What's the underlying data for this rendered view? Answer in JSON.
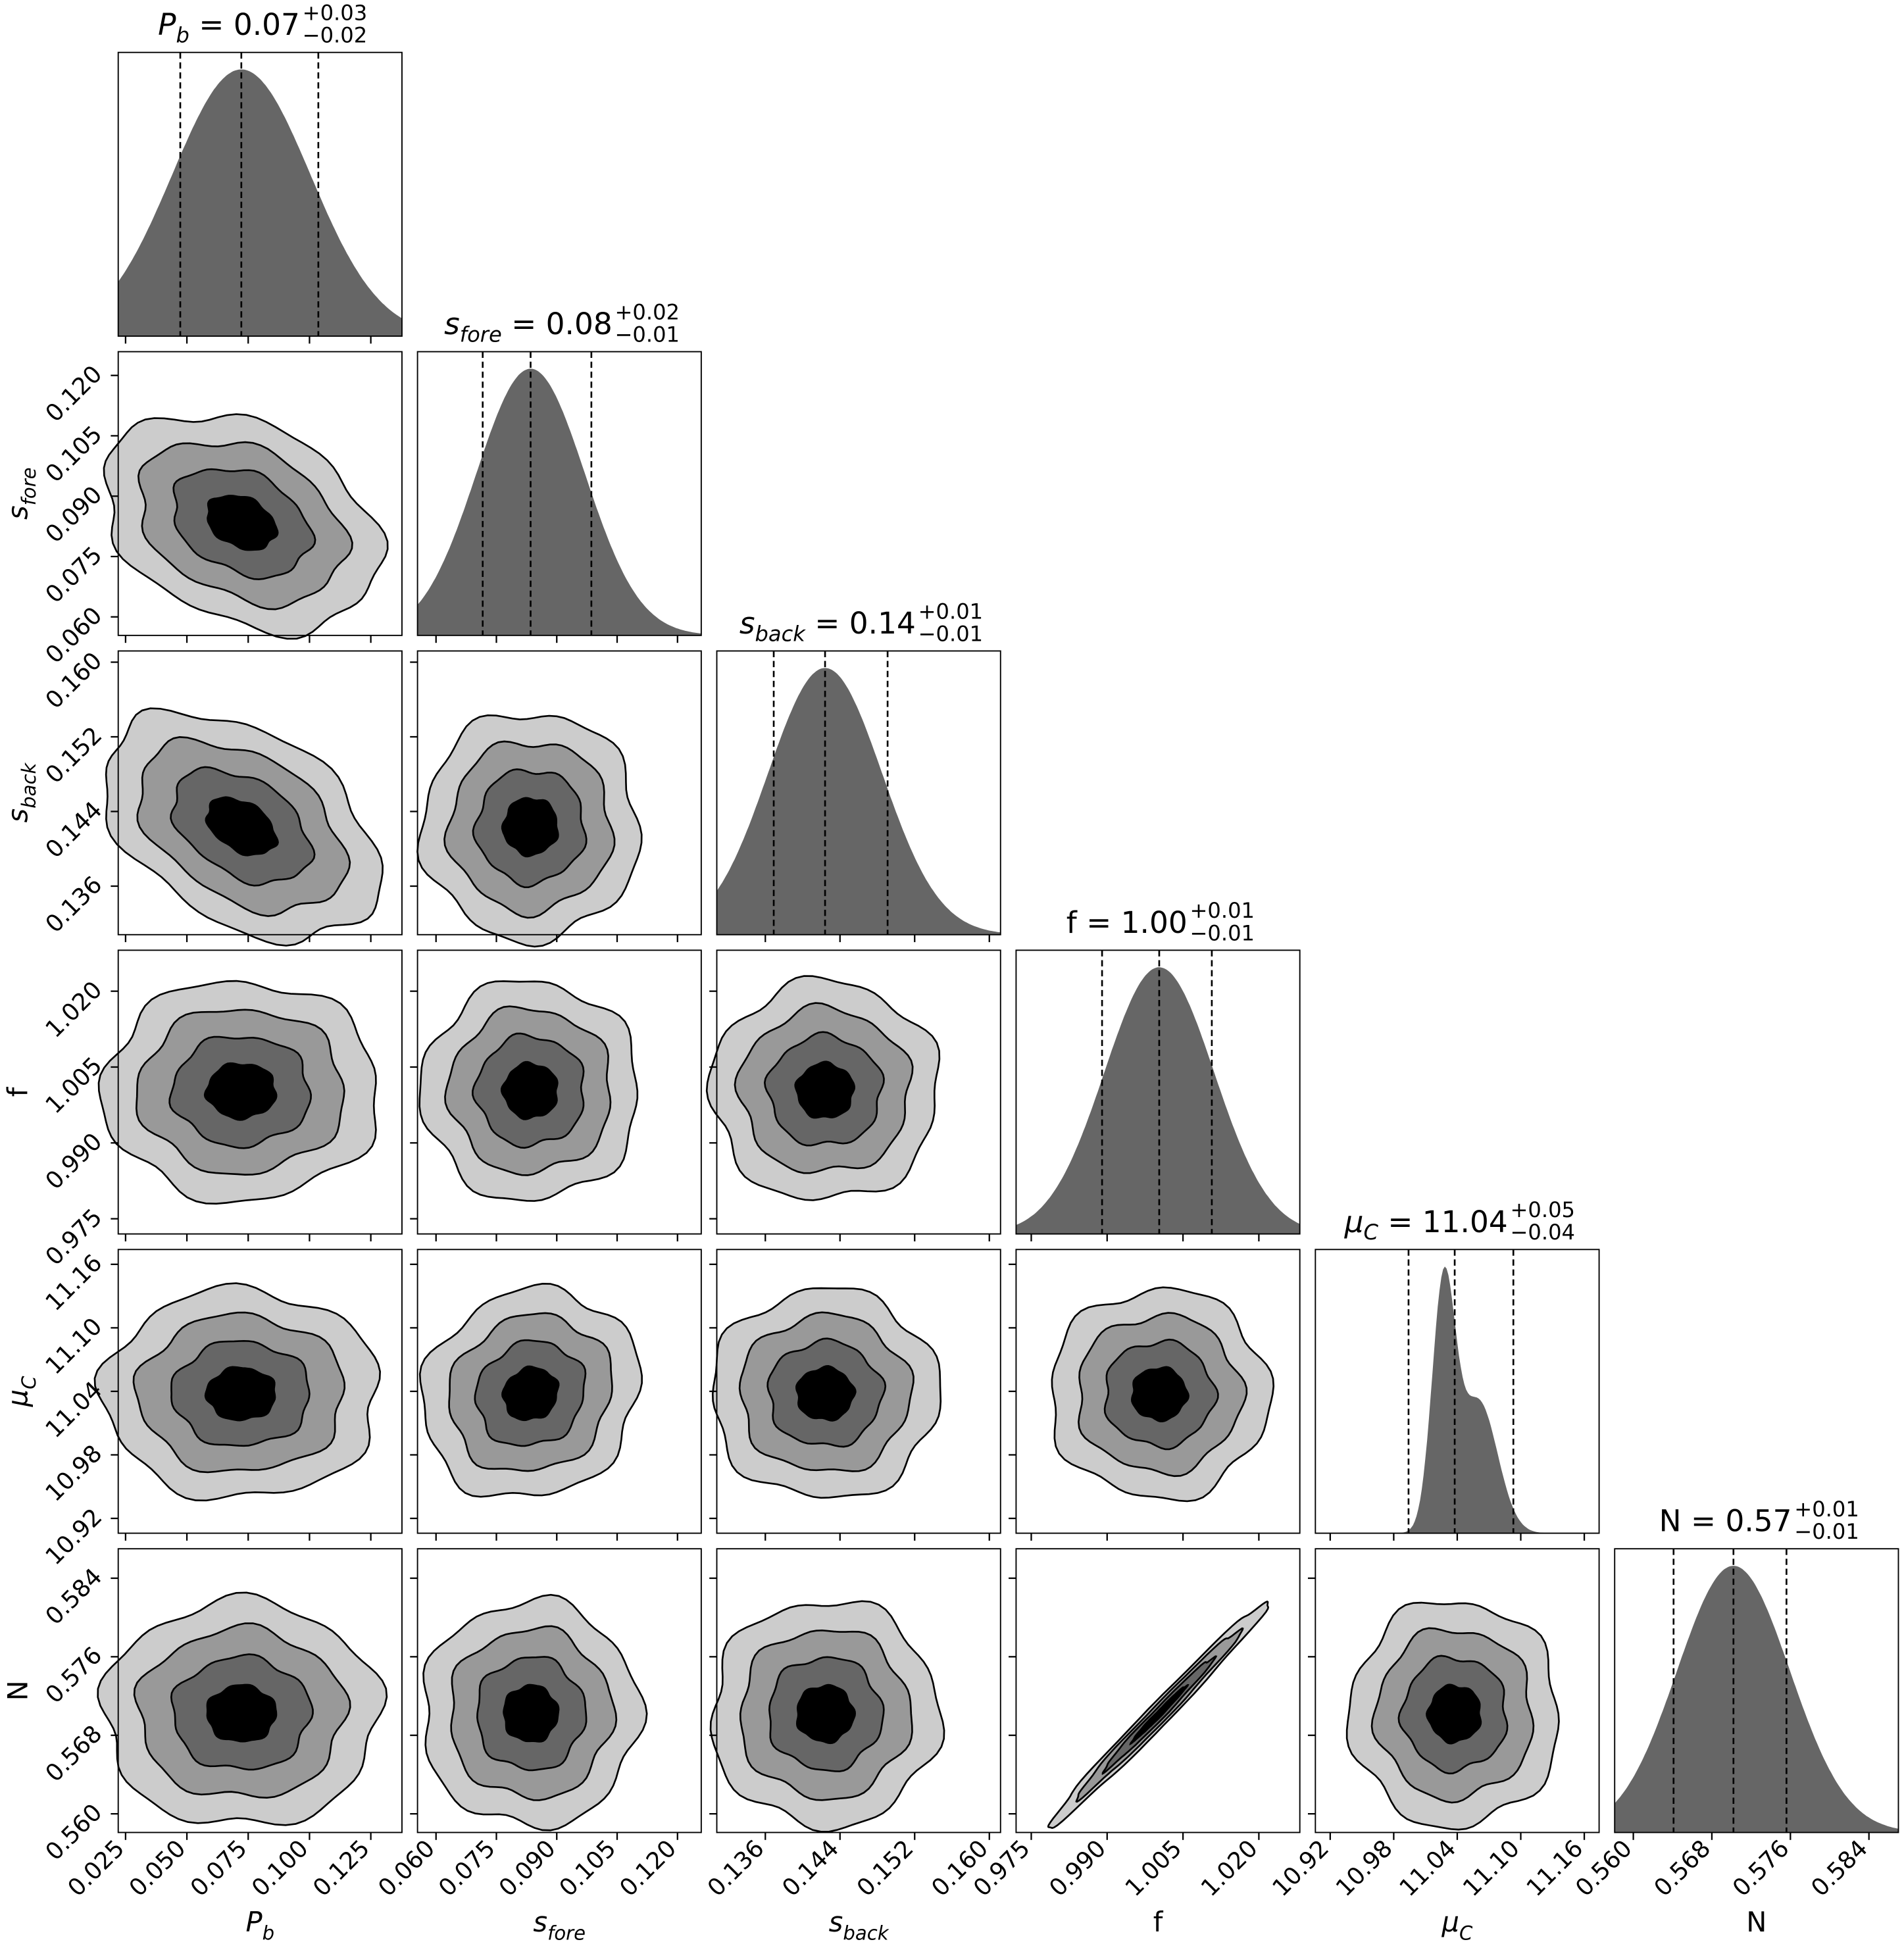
{
  "chart_data": {
    "type": "corner",
    "title": "",
    "contour_colors": [
      "#cccccc",
      "#999999",
      "#666666",
      "#000000"
    ],
    "histogram_color": "#666666",
    "contour_sigma_levels": [
      0.5,
      1.0,
      1.5,
      2.0
    ],
    "parameters": [
      {
        "key": "P_b",
        "label": "P",
        "sub": "b",
        "italic": true,
        "title": {
          "value": "0.07",
          "plus": "+0.03",
          "minus": "−0.02"
        },
        "range": [
          0.022,
          0.1377
        ],
        "ticks": [
          "0.025",
          "0.050",
          "0.075",
          "0.100",
          "0.125"
        ],
        "median": 0.0722,
        "lo": 0.0473,
        "hi": 0.1036
      },
      {
        "key": "s_fore",
        "label": "s",
        "sub": "fore",
        "italic": true,
        "title": {
          "value": "0.08",
          "plus": "+0.02",
          "minus": "−0.01"
        },
        "range": [
          0.0554,
          0.1259
        ],
        "ticks": [
          "0.060",
          "0.075",
          "0.090",
          "0.105",
          "0.120"
        ],
        "median": 0.0835,
        "lo": 0.0716,
        "hi": 0.0986
      },
      {
        "key": "s_back",
        "label": "s",
        "sub": "back",
        "italic": true,
        "title": {
          "value": "0.14",
          "plus": "+0.01",
          "minus": "−0.01"
        },
        "range": [
          0.1308,
          0.1612
        ],
        "ticks": [
          "0.136",
          "0.144",
          "0.152",
          "0.160"
        ],
        "median": 0.1424,
        "lo": 0.1369,
        "hi": 0.1491
      },
      {
        "key": "f",
        "label": "f",
        "sub": "",
        "italic": false,
        "title": {
          "value": "1.00",
          "plus": "+0.01",
          "minus": "−0.01"
        },
        "range": [
          0.972,
          1.0281
        ],
        "ticks": [
          "0.975",
          "0.990",
          "1.005",
          "1.020"
        ],
        "median": 1.0003,
        "lo": 0.989,
        "hi": 1.0107
      },
      {
        "key": "mu_C",
        "label": "μ",
        "sub": "C",
        "italic": true,
        "title": {
          "value": "11.04",
          "plus": "+0.05",
          "minus": "−0.04"
        },
        "range": [
          10.906,
          11.174
        ],
        "ticks": [
          "10.92",
          "10.98",
          "11.04",
          "11.10",
          "11.16"
        ],
        "median": 11.0376,
        "lo": 10.994,
        "hi": 11.093,
        "components": [
          {
            "mean": 11.027,
            "sd": 0.011,
            "weight": 1.0
          },
          {
            "mean": 11.06,
            "sd": 0.018,
            "weight": 0.55
          }
        ]
      },
      {
        "key": "N",
        "label": "N",
        "sub": "",
        "italic": false,
        "title": {
          "value": "0.57",
          "plus": "+0.01",
          "minus": "−0.01"
        },
        "range": [
          0.5581,
          0.587
        ],
        "ticks": [
          "0.560",
          "0.568",
          "0.576",
          "0.584"
        ],
        "median": 0.5702,
        "lo": 0.5641,
        "hi": 0.5756
      }
    ],
    "correlations": [
      [
        1,
        -0.3,
        -0.4,
        0,
        0,
        0
      ],
      [
        -0.3,
        1,
        0,
        0,
        0.1,
        0
      ],
      [
        -0.4,
        0,
        1,
        0,
        0,
        0
      ],
      [
        0,
        0,
        0,
        1,
        0,
        0.99
      ],
      [
        0,
        0.1,
        0,
        0,
        1,
        0
      ],
      [
        0,
        0,
        0,
        0.99,
        0,
        1
      ]
    ]
  }
}
